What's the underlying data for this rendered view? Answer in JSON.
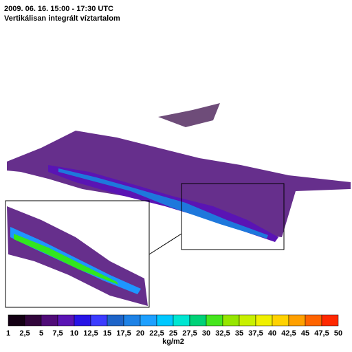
{
  "header": {
    "title": "2009. 06. 16. 15:00 - 17:30 UTC",
    "subtitle": "Vertikálisan integrált víztartalom"
  },
  "legend": {
    "labels": [
      "1",
      "2,5",
      "5",
      "7,5",
      "10",
      "12,5",
      "15",
      "17,5",
      "20",
      "22,5",
      "25",
      "27,5",
      "30",
      "32,5",
      "35",
      "37,5",
      "40",
      "42,5",
      "45",
      "47,5",
      "50"
    ],
    "colors": [
      "#140014",
      "#32063c",
      "#500c78",
      "#5a14b4",
      "#2814e6",
      "#3c3cff",
      "#1e64c8",
      "#1e82e6",
      "#1ea0ff",
      "#00c8ff",
      "#00e6d2",
      "#00d278",
      "#46e61e",
      "#96e600",
      "#c8f000",
      "#f0f000",
      "#ffd200",
      "#ffa000",
      "#ff6400",
      "#ff2800"
    ],
    "unit": "kg/m2"
  }
}
